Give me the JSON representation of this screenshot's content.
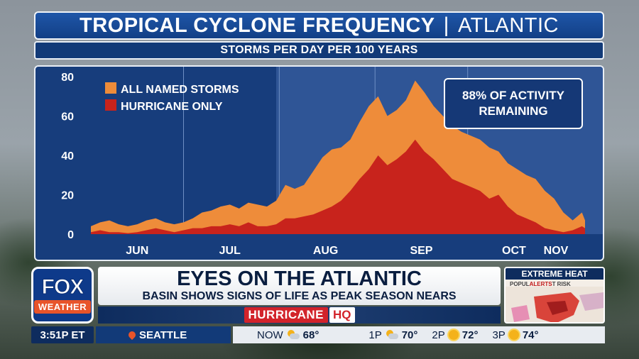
{
  "title": {
    "main": "TROPICAL CYCLONE FREQUENCY",
    "separator": "|",
    "region": "ATLANTIC"
  },
  "subtitle": "STORMS PER DAY PER 100 YEARS",
  "callout": {
    "line1": "88% OF ACTIVITY",
    "line2": "REMAINING"
  },
  "chart_data": {
    "type": "area",
    "title": "TROPICAL CYCLONE FREQUENCY | ATLANTIC",
    "subtitle": "STORMS PER DAY PER 100 YEARS",
    "ylim": [
      0,
      80
    ],
    "yticks": [
      0,
      20,
      40,
      60,
      80
    ],
    "xlim": [
      1,
      161
    ],
    "categories": [
      "JUN",
      "JUL",
      "AUG",
      "SEP",
      "OCT",
      "NOV"
    ],
    "month_label_days": [
      16,
      46,
      77,
      108,
      138,
      169
    ],
    "month_boundaries": [
      31,
      62,
      93,
      123
    ],
    "current_date_day": 61,
    "grid": true,
    "legend_position": "top-left",
    "colors": {
      "all_named": "#ee8c3a",
      "hurricane": "#c8231c",
      "background": "#173d7c",
      "remaining_shade": "#2f5596"
    },
    "series": [
      {
        "name": "ALL NAMED STORMS",
        "x": [
          1,
          4,
          7,
          10,
          13,
          16,
          19,
          22,
          25,
          28,
          31,
          34,
          37,
          40,
          43,
          46,
          49,
          52,
          55,
          58,
          61,
          64,
          67,
          70,
          73,
          76,
          79,
          82,
          85,
          88,
          91,
          94,
          97,
          100,
          103,
          106,
          109,
          112,
          115,
          118,
          121,
          124,
          127,
          130,
          133,
          136,
          139,
          142,
          145,
          148,
          151,
          154,
          157,
          160,
          161
        ],
        "values": [
          4,
          6,
          7,
          5,
          4,
          5,
          7,
          8,
          6,
          5,
          6,
          8,
          11,
          12,
          14,
          15,
          13,
          16,
          15,
          14,
          17,
          25,
          23,
          25,
          32,
          39,
          43,
          44,
          48,
          57,
          65,
          70,
          60,
          63,
          68,
          78,
          72,
          65,
          60,
          55,
          52,
          50,
          48,
          44,
          42,
          36,
          33,
          30,
          28,
          22,
          18,
          11,
          7,
          11,
          7
        ]
      },
      {
        "name": "HURRICANE ONLY",
        "x": [
          1,
          4,
          7,
          10,
          13,
          16,
          19,
          22,
          25,
          28,
          31,
          34,
          37,
          40,
          43,
          46,
          49,
          52,
          55,
          58,
          61,
          64,
          67,
          70,
          73,
          76,
          79,
          82,
          85,
          88,
          91,
          94,
          97,
          100,
          103,
          106,
          109,
          112,
          115,
          118,
          121,
          124,
          127,
          130,
          133,
          136,
          139,
          142,
          145,
          148,
          151,
          154,
          157,
          160,
          161
        ],
        "values": [
          1,
          2,
          1,
          1,
          0.5,
          1,
          2,
          3,
          2,
          1,
          2,
          3,
          3,
          4,
          4,
          5,
          4,
          6,
          4,
          4,
          5,
          8,
          8,
          9,
          10,
          12,
          14,
          17,
          22,
          28,
          33,
          40,
          35,
          38,
          42,
          48,
          42,
          38,
          33,
          28,
          26,
          24,
          22,
          18,
          20,
          14,
          10,
          8,
          6,
          3,
          2,
          1,
          2,
          4,
          3
        ]
      }
    ]
  },
  "lower_third": {
    "logo": {
      "top": "FOX",
      "bottom": "WEATHER"
    },
    "headline": "EYES ON THE ATLANTIC",
    "subhead": "BASIN SHOWS SIGNS OF LIFE AS PEAK SEASON NEARS",
    "program": {
      "name": "HURRICANE",
      "tag": "HQ"
    },
    "promo": {
      "title": "EXTREME HEAT",
      "sub_prefix": "POPUL",
      "sub_alert": "ALERTS",
      "sub_suffix": "T RISK"
    }
  },
  "ticker": {
    "time": "3:51P ET",
    "city": "SEATTLE",
    "now_label": "NOW",
    "now_temp": "68°",
    "forecast": [
      {
        "time": "1P",
        "temp": "70°",
        "icon": "sun-cloud-icon"
      },
      {
        "time": "2P",
        "temp": "72°",
        "icon": "sun-icon"
      },
      {
        "time": "3P",
        "temp": "74°",
        "icon": "sun-icon"
      }
    ]
  }
}
